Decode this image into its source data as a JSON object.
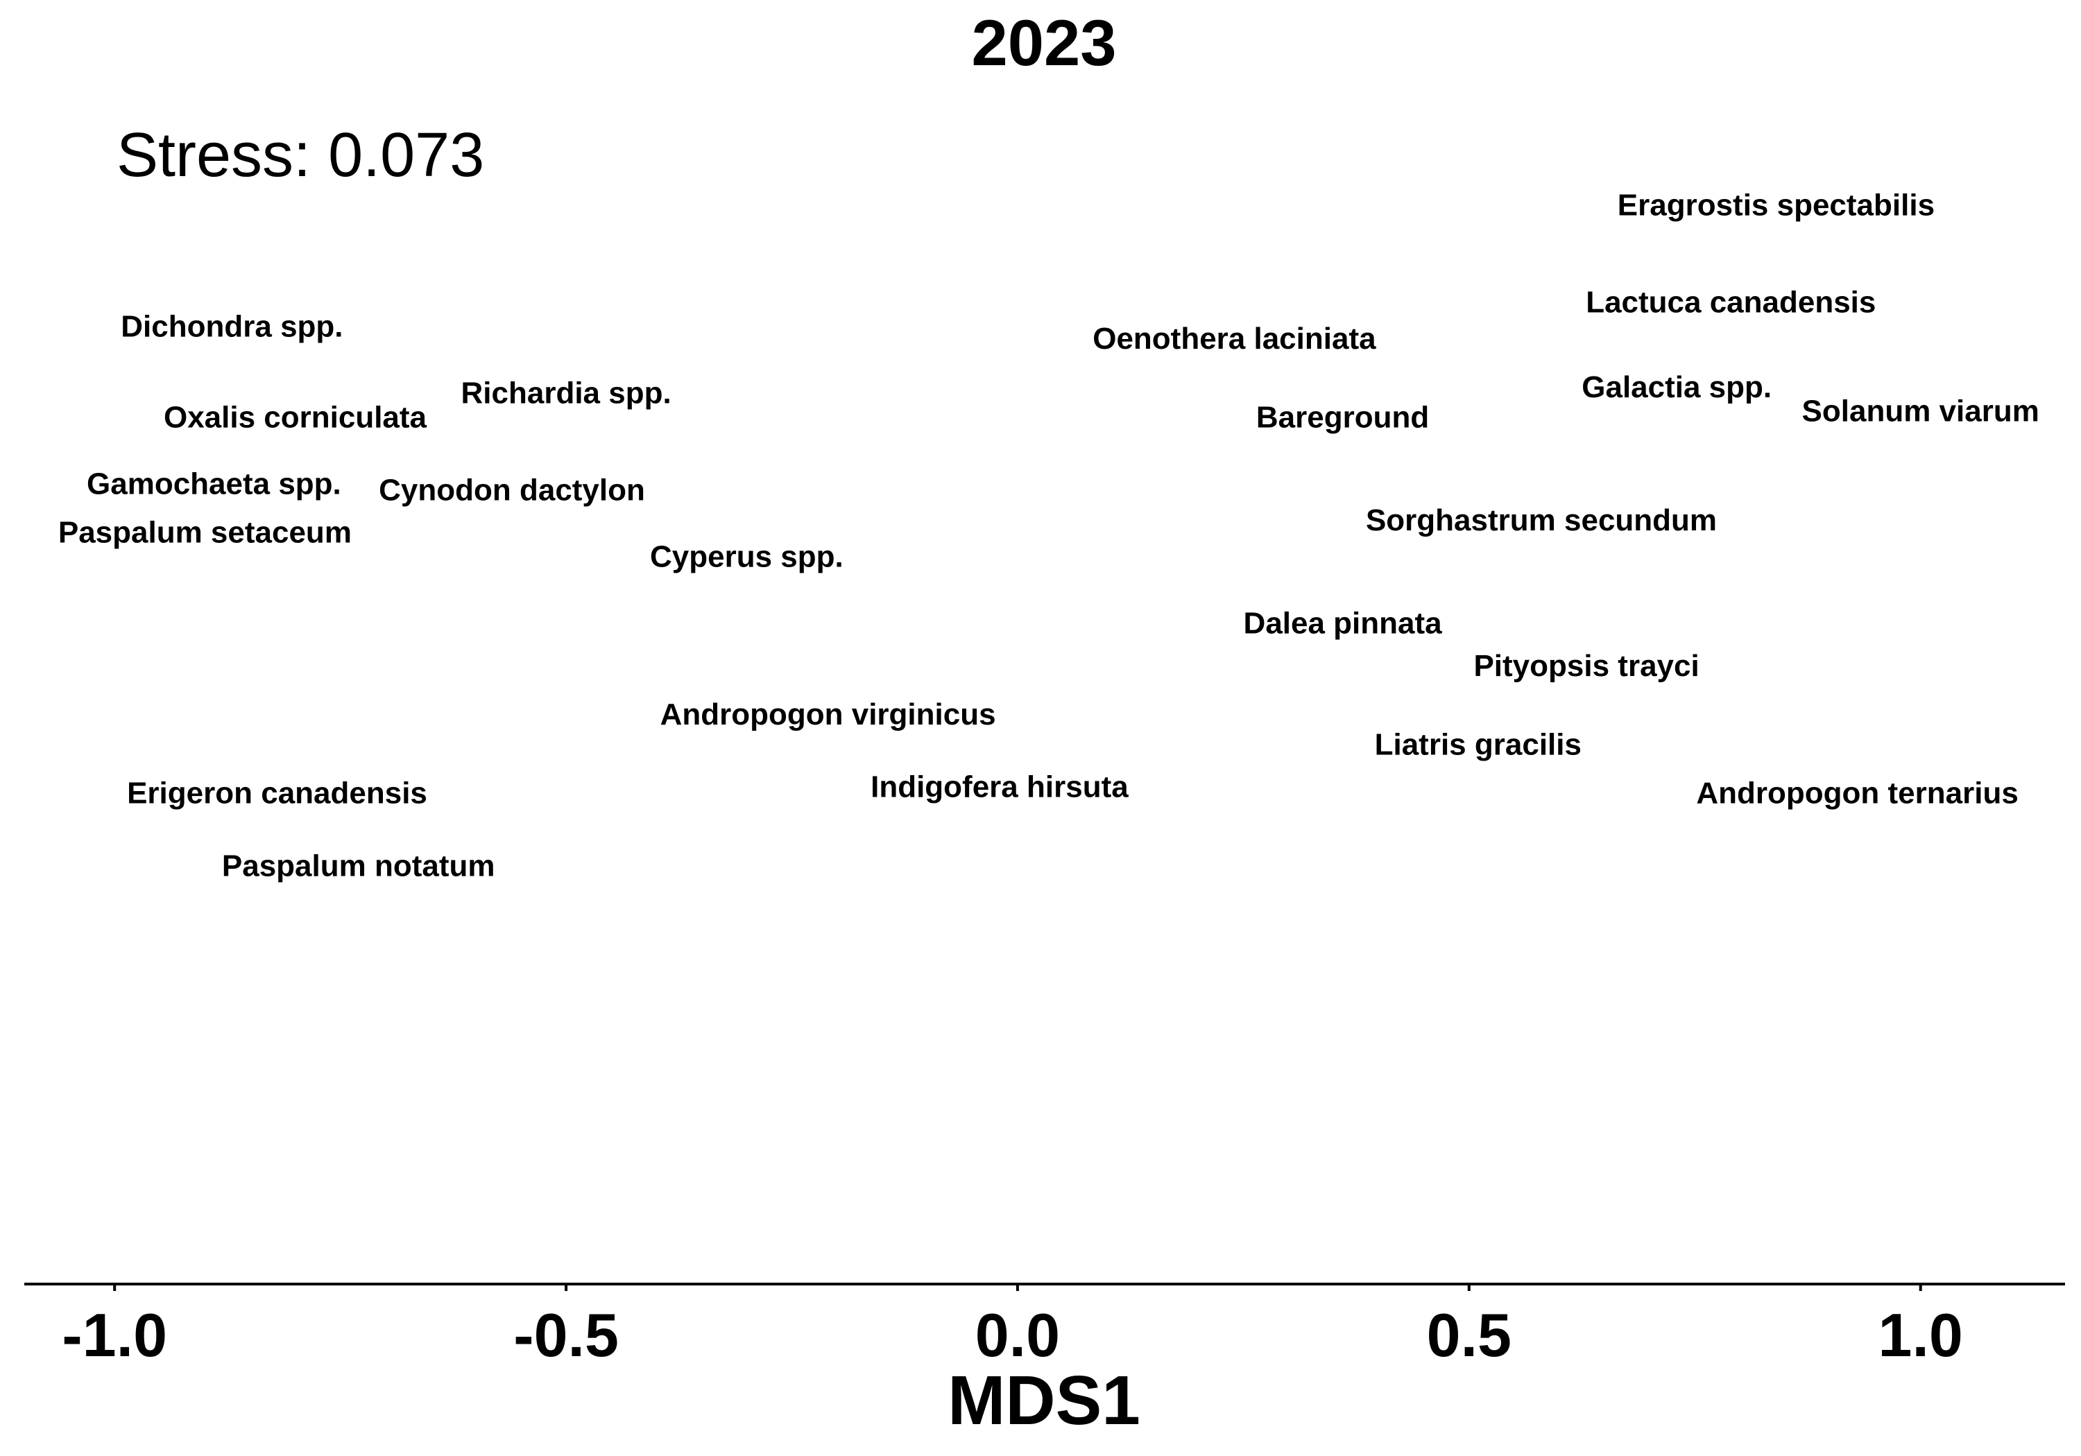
{
  "chart_data": {
    "type": "scatter",
    "title": "2023",
    "annotation": "Stress: 0.073",
    "xlabel": "MDS1",
    "ylabel": "",
    "xlim": [
      -1.1,
      1.16
    ],
    "ylim": [
      -1.0,
      1.05
    ],
    "xticks": [
      -1.0,
      -0.5,
      0.0,
      0.5,
      1.0
    ],
    "xtick_labels": [
      "-1.0",
      "-0.5",
      "0.0",
      "0.5",
      "1.0"
    ],
    "show_y_axis": false,
    "grid": false,
    "points": [
      {
        "label": "Eragrostis spectabilis",
        "x": 0.84,
        "y": 0.78
      },
      {
        "label": "Lactuca canadensis",
        "x": 0.79,
        "y": 0.62
      },
      {
        "label": "Oenothera laciniata",
        "x": 0.24,
        "y": 0.56
      },
      {
        "label": "Dichondra spp.",
        "x": -0.87,
        "y": 0.58
      },
      {
        "label": "Galactia spp.",
        "x": 0.73,
        "y": 0.48
      },
      {
        "label": "Solanum viarum",
        "x": 1.0,
        "y": 0.44
      },
      {
        "label": "Richardia spp.",
        "x": -0.5,
        "y": 0.47
      },
      {
        "label": "Oxalis corniculata",
        "x": -0.8,
        "y": 0.43
      },
      {
        "label": "Bareground",
        "x": 0.36,
        "y": 0.43
      },
      {
        "label": "Gamochaeta spp.",
        "x": -0.89,
        "y": 0.32
      },
      {
        "label": "Cynodon dactylon",
        "x": -0.56,
        "y": 0.31
      },
      {
        "label": "Paspalum setaceum",
        "x": -0.9,
        "y": 0.24
      },
      {
        "label": "Sorghastrum secundum",
        "x": 0.58,
        "y": 0.26
      },
      {
        "label": "Cyperus spp.",
        "x": -0.3,
        "y": 0.2
      },
      {
        "label": "Dalea pinnata",
        "x": 0.36,
        "y": 0.09
      },
      {
        "label": "Pityopsis trayci",
        "x": 0.63,
        "y": 0.02
      },
      {
        "label": "Andropogon virginicus",
        "x": -0.21,
        "y": -0.06
      },
      {
        "label": "Liatris gracilis",
        "x": 0.51,
        "y": -0.11
      },
      {
        "label": "Indigofera hirsuta",
        "x": -0.02,
        "y": -0.18
      },
      {
        "label": "Erigeron canadensis",
        "x": -0.82,
        "y": -0.19
      },
      {
        "label": "Andropogon ternarius",
        "x": 0.93,
        "y": -0.19
      },
      {
        "label": "Paspalum notatum",
        "x": -0.73,
        "y": -0.31
      }
    ]
  }
}
